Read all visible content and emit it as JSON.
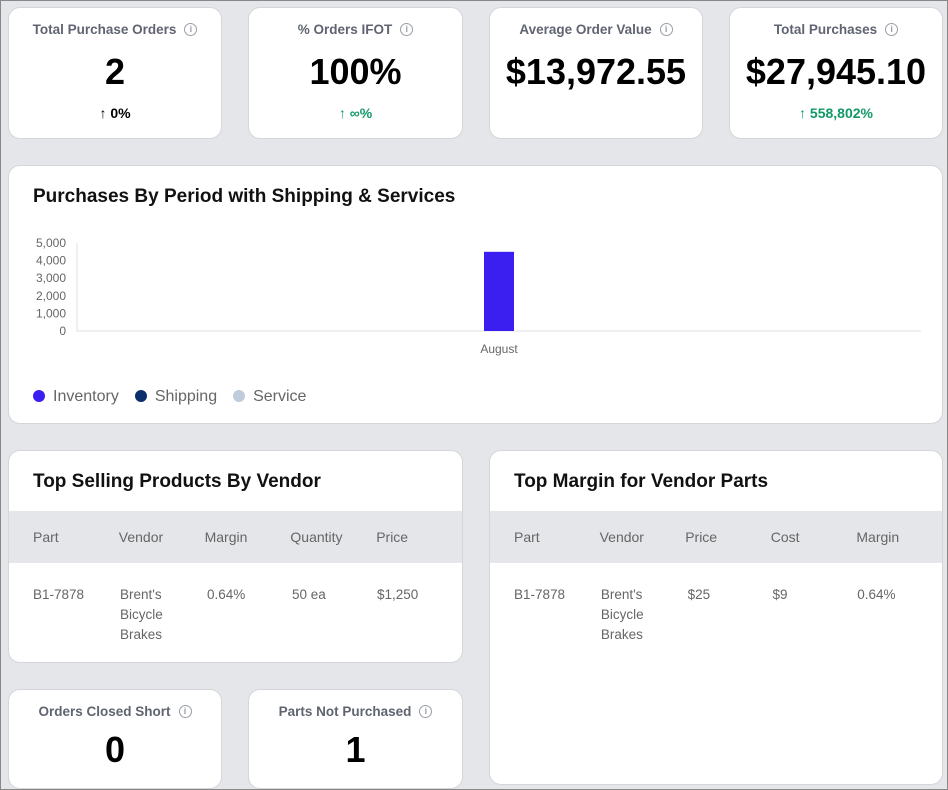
{
  "kpis": [
    {
      "title": "Total Purchase Orders",
      "value": "2",
      "arrow": "↑",
      "delta": "0%",
      "color": "#000000"
    },
    {
      "title": "% Orders IFOT",
      "value": "100%",
      "arrow": "↑",
      "delta": "∞%",
      "color": "#119966"
    },
    {
      "title": "Average Order Value",
      "value": "$13,972.55",
      "arrow": "",
      "delta": "",
      "color": "#000000"
    },
    {
      "title": "Total Purchases",
      "value": "$27,945.10",
      "arrow": "↑",
      "delta": "558,802%",
      "color": "#119966"
    }
  ],
  "chart_data": {
    "type": "bar",
    "title": "Purchases By Period with Shipping & Services",
    "categories": [
      "August"
    ],
    "series": [
      {
        "name": "Inventory",
        "color": "#3a1ff0",
        "values": [
          4500
        ]
      },
      {
        "name": "Shipping",
        "color": "#0a2f6b",
        "values": [
          0
        ]
      },
      {
        "name": "Service",
        "color": "#bfccdb",
        "values": [
          0
        ]
      }
    ],
    "yticks": [
      "0",
      "1,000",
      "2,000",
      "3,000",
      "4,000",
      "5,000"
    ],
    "ylim": [
      0,
      5000
    ],
    "legend": "bottom-left"
  },
  "top_selling": {
    "title": "Top Selling Products By Vendor",
    "headers": [
      "Part",
      "Vendor",
      "Margin",
      "Quantity",
      "Price"
    ],
    "rows": [
      [
        "B1-7878",
        "Brent's Bicycle Brakes",
        "0.64%",
        "50 ea",
        "$1,250"
      ]
    ]
  },
  "top_margin": {
    "title": "Top Margin for Vendor Parts",
    "headers": [
      "Part",
      "Vendor",
      "Price",
      "Cost",
      "Margin"
    ],
    "rows": [
      [
        "B1-7878",
        "Brent's Bicycle Brakes",
        "$25",
        "$9",
        "0.64%"
      ]
    ]
  },
  "small": [
    {
      "title": "Orders Closed Short",
      "value": "0"
    },
    {
      "title": "Parts Not Purchased",
      "value": "1"
    }
  ]
}
